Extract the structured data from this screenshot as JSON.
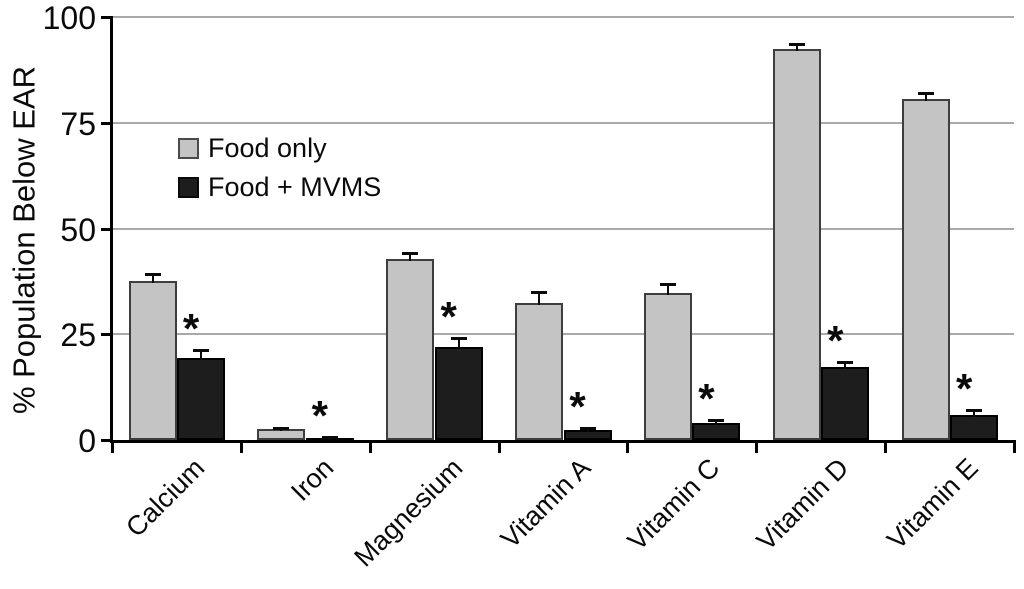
{
  "chart_data": {
    "type": "bar",
    "title": "",
    "xlabel": "",
    "ylabel": "% Population Below EAR",
    "ylim": [
      0,
      100
    ],
    "yticks": [
      0,
      25,
      50,
      75,
      100
    ],
    "grid": true,
    "legend_position": "inside-upper-left",
    "categories": [
      "Calcium",
      "Iron",
      "Magnesium",
      "Vitamin A",
      "Vitamin C",
      "Vitamin D",
      "Vitamin E"
    ],
    "series": [
      {
        "name": "Food only",
        "color": "#c4c4c4",
        "values": [
          37.5,
          2.5,
          42.8,
          32.5,
          34.8,
          92.5,
          80.5
        ],
        "errors": [
          1.8,
          0.4,
          1.5,
          2.6,
          2.0,
          1.0,
          1.6
        ]
      },
      {
        "name": "Food + MVMS",
        "color": "#1d1d1d",
        "values": [
          19.5,
          0.5,
          22.0,
          2.3,
          4.0,
          17.3,
          6.0
        ],
        "errors": [
          1.8,
          0.3,
          2.0,
          0.5,
          0.8,
          1.2,
          1.0
        ]
      }
    ],
    "significance_marker": "*",
    "significance_on_series2": [
      true,
      true,
      true,
      true,
      true,
      true,
      true
    ],
    "colors": {
      "axis": "#000000",
      "gridline": "#a9a9a9",
      "bar_light_fill": "#c4c4c4",
      "bar_light_border": "#3e3e3e",
      "bar_dark_fill": "#1d1d1d",
      "bar_dark_border": "#000000",
      "background": "#ffffff",
      "text": "#0a0a0a"
    }
  }
}
